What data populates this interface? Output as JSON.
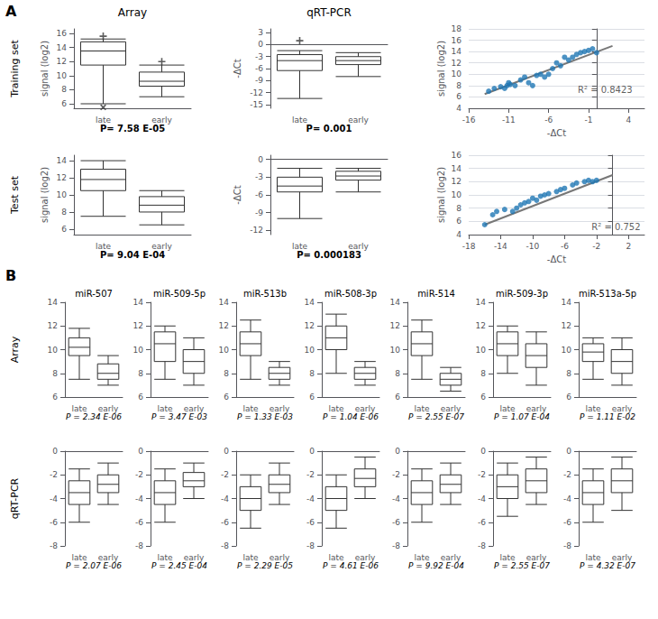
{
  "chart_data": [
    {
      "type": "boxplot",
      "categories": [
        "late",
        "early"
      ],
      "ylabel": "signal (log2)",
      "color": "#333333",
      "ylim": [
        5.36,
        16.64
      ],
      "yticks": [
        6,
        8,
        10,
        12,
        14,
        16
      ],
      "grid": false,
      "boxes": [
        {
          "whisker_low": 6.0,
          "q1": 11.5,
          "median": 13.5,
          "q3": 14.8,
          "whisker_high": 15.2,
          "outliers_low": [
            5.5
          ],
          "outliers_high": [
            15.6
          ]
        },
        {
          "whisker_low": 7.0,
          "q1": 8.5,
          "median": 9.2,
          "q3": 10.5,
          "whisker_high": 11.5,
          "outliers_high": [
            12.0
          ]
        }
      ],
      "annotations": [
        {
          "text": "P= 7.58 E-05"
        }
      ]
    },
    {
      "type": "boxplot",
      "categories": [
        "late",
        "early"
      ],
      "ylabel": "-ΔCt",
      "color": "#333333",
      "ylim": [
        -15.96,
        3.96
      ],
      "yticks": [
        -15,
        -12,
        -9,
        -6,
        -3,
        0,
        3
      ],
      "grid": false,
      "boxes": [
        {
          "whisker_low": -13.5,
          "q1": -6.5,
          "median": -4.0,
          "q3": -2.5,
          "whisker_high": -1.5,
          "outliers_high": [
            1.0
          ]
        },
        {
          "whisker_low": -8.0,
          "q1": -5.0,
          "median": -4.0,
          "q3": -3.0,
          "whisker_high": -2.0
        }
      ],
      "annotations": [
        {
          "text": "P= 0.001"
        }
      ]
    },
    {
      "type": "scatter",
      "xlabel": "-ΔCt",
      "ylabel": "signal (log2)",
      "xlim": [
        -16,
        6
      ],
      "ylim": [
        4,
        18
      ],
      "xticks": [
        -16,
        -11,
        -6,
        -1,
        4
      ],
      "yticks": [
        4,
        6,
        8,
        10,
        12,
        14,
        16,
        18
      ],
      "grid": "y",
      "series": [
        {
          "type": "scatter",
          "color": "#1f77b4",
          "x": [
            -13.5,
            -12.8,
            -12.0,
            -11.5,
            -11.2,
            -11.0,
            -10.8,
            -10.2,
            -9.5,
            -9.0,
            -8.5,
            -8.0,
            -7.5,
            -7.0,
            -6.5,
            -6.0,
            -5.5,
            -5.0,
            -4.5,
            -4.0,
            -3.5,
            -3.0,
            -2.5,
            -2.0,
            -1.5,
            -1.0,
            -0.5,
            0.0
          ],
          "values": [
            7.0,
            7.5,
            7.8,
            7.5,
            8.0,
            8.5,
            8.2,
            8.0,
            9.0,
            9.5,
            8.5,
            8.0,
            9.8,
            10.0,
            9.5,
            10.0,
            11.0,
            12.0,
            11.5,
            13.0,
            12.5,
            13.0,
            13.5,
            13.8,
            14.0,
            14.2,
            14.5,
            13.8
          ]
        },
        {
          "type": "line",
          "color": "#777777",
          "x": [
            -14,
            2
          ],
          "values": [
            6.5,
            15.0
          ]
        }
      ],
      "annotations": [
        {
          "text": "R² = 0.8423",
          "x": 4.5,
          "y": 7.2
        }
      ]
    },
    {
      "type": "boxplot",
      "categories": [
        "late",
        "early"
      ],
      "ylabel": "signal (log2)",
      "color": "#333333",
      "ylim": [
        5.36,
        14.64
      ],
      "yticks": [
        6,
        8,
        10,
        12,
        14
      ],
      "grid": false,
      "boxes": [
        {
          "whisker_low": 7.5,
          "q1": 10.5,
          "median": 11.8,
          "q3": 13.0,
          "whisker_high": 14.0
        },
        {
          "whisker_low": 6.5,
          "q1": 8.0,
          "median": 8.8,
          "q3": 9.8,
          "whisker_high": 10.5
        }
      ],
      "annotations": [
        {
          "text": "P= 9.04 E-04"
        }
      ]
    },
    {
      "type": "boxplot",
      "categories": [
        "late",
        "early"
      ],
      "ylabel": "-ΔCt",
      "color": "#333333",
      "ylim": [
        -12.72,
        0.72
      ],
      "yticks": [
        -12,
        -9,
        -6,
        -3,
        0
      ],
      "grid": false,
      "boxes": [
        {
          "whisker_low": -10.0,
          "q1": -5.5,
          "median": -4.5,
          "q3": -3.0,
          "whisker_high": -1.5
        },
        {
          "whisker_low": -5.5,
          "q1": -3.5,
          "median": -2.8,
          "q3": -2.0,
          "whisker_high": -1.5
        }
      ],
      "annotations": [
        {
          "text": "P= 0.000183"
        }
      ]
    },
    {
      "type": "scatter",
      "xlabel": "-ΔCt",
      "ylabel": "signal (log2)",
      "xlim": [
        -18,
        4
      ],
      "ylim": [
        4,
        16
      ],
      "xticks": [
        -18,
        -14,
        -10,
        -6,
        -2,
        2
      ],
      "yticks": [
        4,
        6,
        8,
        10,
        12,
        14,
        16
      ],
      "grid": "y",
      "series": [
        {
          "type": "scatter",
          "color": "#1f77b4",
          "x": [
            -16,
            -15,
            -14.5,
            -13.5,
            -12.5,
            -12.0,
            -11.5,
            -11.0,
            -10.5,
            -10.0,
            -9.5,
            -9.0,
            -8.5,
            -8.0,
            -7.0,
            -6.5,
            -6.0,
            -5.0,
            -4.5,
            -3.5,
            -3.0,
            -2.5,
            -2.0
          ],
          "values": [
            5.5,
            7.0,
            7.5,
            7.8,
            7.5,
            8.0,
            8.5,
            8.8,
            9.0,
            9.5,
            9.2,
            9.8,
            10.0,
            10.2,
            10.5,
            10.8,
            11.0,
            11.5,
            11.8,
            12.0,
            12.2,
            12.0,
            12.2
          ]
        },
        {
          "type": "line",
          "color": "#777777",
          "x": [
            -16,
            0
          ],
          "values": [
            5.5,
            13.0
          ]
        }
      ],
      "annotations": [
        {
          "text": "R² = 0.752",
          "x": 3.5,
          "y": 5.2
        }
      ]
    },
    {
      "type": "boxplot",
      "title": "miR-507",
      "categories": [
        "late",
        "early"
      ],
      "color": "#333333",
      "ylim": [
        6,
        14
      ],
      "yticks": [
        6,
        8,
        10,
        12,
        14
      ],
      "grid": false,
      "boxes": [
        {
          "whisker_low": 7.5,
          "q1": 9.5,
          "median": 10.2,
          "q3": 11.0,
          "whisker_high": 11.8
        },
        {
          "whisker_low": 7.0,
          "q1": 7.5,
          "median": 8.0,
          "q3": 8.8,
          "whisker_high": 9.5
        }
      ],
      "annotations": [
        {
          "text": "P = 2.34 E-06"
        }
      ]
    },
    {
      "type": "boxplot",
      "title": "miR-509-5p",
      "categories": [
        "late",
        "early"
      ],
      "color": "#333333",
      "ylim": [
        6,
        14
      ],
      "yticks": [
        6,
        8,
        10,
        12,
        14
      ],
      "grid": false,
      "boxes": [
        {
          "whisker_low": 7.5,
          "q1": 9.0,
          "median": 10.5,
          "q3": 11.5,
          "whisker_high": 12.0
        },
        {
          "whisker_low": 7.0,
          "q1": 8.0,
          "median": 9.0,
          "q3": 10.0,
          "whisker_high": 11.0
        }
      ],
      "annotations": [
        {
          "text": "P = 3.47 E-03"
        }
      ]
    },
    {
      "type": "boxplot",
      "title": "miR-513b",
      "categories": [
        "late",
        "early"
      ],
      "color": "#333333",
      "ylim": [
        6,
        14
      ],
      "yticks": [
        6,
        8,
        10,
        12,
        14
      ],
      "grid": false,
      "boxes": [
        {
          "whisker_low": 7.5,
          "q1": 9.5,
          "median": 10.5,
          "q3": 11.5,
          "whisker_high": 12.5
        },
        {
          "whisker_low": 7.0,
          "q1": 7.5,
          "median": 8.0,
          "q3": 8.5,
          "whisker_high": 9.0
        }
      ],
      "annotations": [
        {
          "text": "P = 1.33 E-03"
        }
      ]
    },
    {
      "type": "boxplot",
      "title": "miR-508-3p",
      "categories": [
        "late",
        "early"
      ],
      "color": "#333333",
      "ylim": [
        6,
        14
      ],
      "yticks": [
        6,
        8,
        10,
        12,
        14
      ],
      "grid": false,
      "boxes": [
        {
          "whisker_low": 8.0,
          "q1": 10.0,
          "median": 11.0,
          "q3": 12.0,
          "whisker_high": 13.0
        },
        {
          "whisker_low": 7.0,
          "q1": 7.5,
          "median": 8.0,
          "q3": 8.5,
          "whisker_high": 9.0
        }
      ],
      "annotations": [
        {
          "text": "P = 1.04 E-06"
        }
      ]
    },
    {
      "type": "boxplot",
      "title": "miR-514",
      "categories": [
        "late",
        "early"
      ],
      "color": "#333333",
      "ylim": [
        6,
        14
      ],
      "yticks": [
        6,
        8,
        10,
        12,
        14
      ],
      "grid": false,
      "boxes": [
        {
          "whisker_low": 7.5,
          "q1": 9.5,
          "median": 10.5,
          "q3": 11.5,
          "whisker_high": 12.5
        },
        {
          "whisker_low": 6.5,
          "q1": 7.0,
          "median": 7.5,
          "q3": 8.0,
          "whisker_high": 8.5
        }
      ],
      "annotations": [
        {
          "text": "P = 2.55 E-07"
        }
      ]
    },
    {
      "type": "boxplot",
      "title": "miR-509-3p",
      "categories": [
        "late",
        "early"
      ],
      "color": "#333333",
      "ylim": [
        6,
        14
      ],
      "yticks": [
        6,
        8,
        10,
        12,
        14
      ],
      "grid": false,
      "boxes": [
        {
          "whisker_low": 8.0,
          "q1": 9.5,
          "median": 10.5,
          "q3": 11.5,
          "whisker_high": 12.0
        },
        {
          "whisker_low": 7.0,
          "q1": 8.5,
          "median": 9.5,
          "q3": 10.5,
          "whisker_high": 11.5
        }
      ],
      "annotations": [
        {
          "text": "P = 1.07 E-04"
        }
      ]
    },
    {
      "type": "boxplot",
      "title": "miR-513a-5p",
      "categories": [
        "late",
        "early"
      ],
      "color": "#333333",
      "ylim": [
        6,
        14
      ],
      "yticks": [
        6,
        8,
        10,
        12,
        14
      ],
      "grid": false,
      "boxes": [
        {
          "whisker_low": 7.5,
          "q1": 9.0,
          "median": 9.8,
          "q3": 10.5,
          "whisker_high": 11.0
        },
        {
          "whisker_low": 7.0,
          "q1": 8.0,
          "median": 9.0,
          "q3": 10.0,
          "whisker_high": 11.0
        }
      ],
      "annotations": [
        {
          "text": "P = 1.11 E-02"
        }
      ]
    },
    {
      "type": "boxplot",
      "categories": [
        "late",
        "early"
      ],
      "color": "#333333",
      "ylim": [
        -8,
        0
      ],
      "yticks": [
        -8,
        -6,
        -4,
        -2,
        0
      ],
      "grid": false,
      "boxes": [
        {
          "whisker_low": -6.0,
          "q1": -4.5,
          "median": -3.5,
          "q3": -2.5,
          "whisker_high": -1.5
        },
        {
          "whisker_low": -4.5,
          "q1": -3.5,
          "median": -2.8,
          "q3": -2.0,
          "whisker_high": -1.0
        }
      ],
      "annotations": [
        {
          "text": "P = 2.07 E-06"
        }
      ]
    },
    {
      "type": "boxplot",
      "categories": [
        "late",
        "early"
      ],
      "color": "#333333",
      "ylim": [
        -8,
        0
      ],
      "yticks": [
        -8,
        -6,
        -4,
        -2,
        0
      ],
      "grid": false,
      "boxes": [
        {
          "whisker_low": -6.0,
          "q1": -4.5,
          "median": -3.5,
          "q3": -2.5,
          "whisker_high": -1.5
        },
        {
          "whisker_low": -4.0,
          "q1": -3.0,
          "median": -2.5,
          "q3": -1.8,
          "whisker_high": -1.0
        }
      ],
      "annotations": [
        {
          "text": "P = 2.45 E-04"
        }
      ]
    },
    {
      "type": "boxplot",
      "categories": [
        "late",
        "early"
      ],
      "color": "#333333",
      "ylim": [
        -8,
        0
      ],
      "yticks": [
        -8,
        -6,
        -4,
        -2,
        0
      ],
      "grid": false,
      "boxes": [
        {
          "whisker_low": -6.5,
          "q1": -5.0,
          "median": -4.0,
          "q3": -3.0,
          "whisker_high": -2.0
        },
        {
          "whisker_low": -4.5,
          "q1": -3.5,
          "median": -2.8,
          "q3": -2.0,
          "whisker_high": -1.0
        }
      ],
      "annotations": [
        {
          "text": "P = 2.29 E-05"
        }
      ]
    },
    {
      "type": "boxplot",
      "categories": [
        "late",
        "early"
      ],
      "color": "#333333",
      "ylim": [
        -8,
        0
      ],
      "yticks": [
        -8,
        -6,
        -4,
        -2,
        0
      ],
      "grid": false,
      "boxes": [
        {
          "whisker_low": -6.5,
          "q1": -5.0,
          "median": -4.0,
          "q3": -3.0,
          "whisker_high": -2.0
        },
        {
          "whisker_low": -4.0,
          "q1": -3.0,
          "median": -2.3,
          "q3": -1.5,
          "whisker_high": -0.5
        }
      ],
      "annotations": [
        {
          "text": "P = 4.61 E-06"
        }
      ]
    },
    {
      "type": "boxplot",
      "categories": [
        "late",
        "early"
      ],
      "color": "#333333",
      "ylim": [
        -8,
        0
      ],
      "yticks": [
        -8,
        -6,
        -4,
        -2,
        0
      ],
      "grid": false,
      "boxes": [
        {
          "whisker_low": -6.0,
          "q1": -4.5,
          "median": -3.5,
          "q3": -2.5,
          "whisker_high": -1.5
        },
        {
          "whisker_low": -4.5,
          "q1": -3.5,
          "median": -2.8,
          "q3": -2.0,
          "whisker_high": -1.0
        }
      ],
      "annotations": [
        {
          "text": "P = 9.92 E-04"
        }
      ]
    },
    {
      "type": "boxplot",
      "categories": [
        "late",
        "early"
      ],
      "color": "#333333",
      "ylim": [
        -8,
        0
      ],
      "yticks": [
        -8,
        -6,
        -4,
        -2,
        0
      ],
      "grid": false,
      "boxes": [
        {
          "whisker_low": -5.5,
          "q1": -4.0,
          "median": -3.0,
          "q3": -2.0,
          "whisker_high": -1.0
        },
        {
          "whisker_low": -4.5,
          "q1": -3.5,
          "median": -2.5,
          "q3": -1.5,
          "whisker_high": -0.5
        }
      ],
      "annotations": [
        {
          "text": "P = 2.55 E-07"
        }
      ]
    },
    {
      "type": "boxplot",
      "categories": [
        "late",
        "early"
      ],
      "color": "#333333",
      "ylim": [
        -8,
        0
      ],
      "yticks": [
        -8,
        -6,
        -4,
        -2,
        0
      ],
      "grid": false,
      "boxes": [
        {
          "whisker_low": -6.0,
          "q1": -4.5,
          "median": -3.5,
          "q3": -2.5,
          "whisker_high": -1.5
        },
        {
          "whisker_low": -5.0,
          "q1": -3.5,
          "median": -2.5,
          "q3": -1.5,
          "whisker_high": -0.5
        }
      ],
      "annotations": [
        {
          "text": "P = 4.32 E-07"
        }
      ]
    }
  ],
  "sections": [
    {
      "label": "A",
      "column_titles": [
        "Array",
        "qRT-PCR"
      ],
      "row_titles": [
        "Training set",
        "Test set"
      ]
    },
    {
      "label": "B",
      "row_titles": [
        "Array",
        "qRT-PCR"
      ]
    }
  ]
}
